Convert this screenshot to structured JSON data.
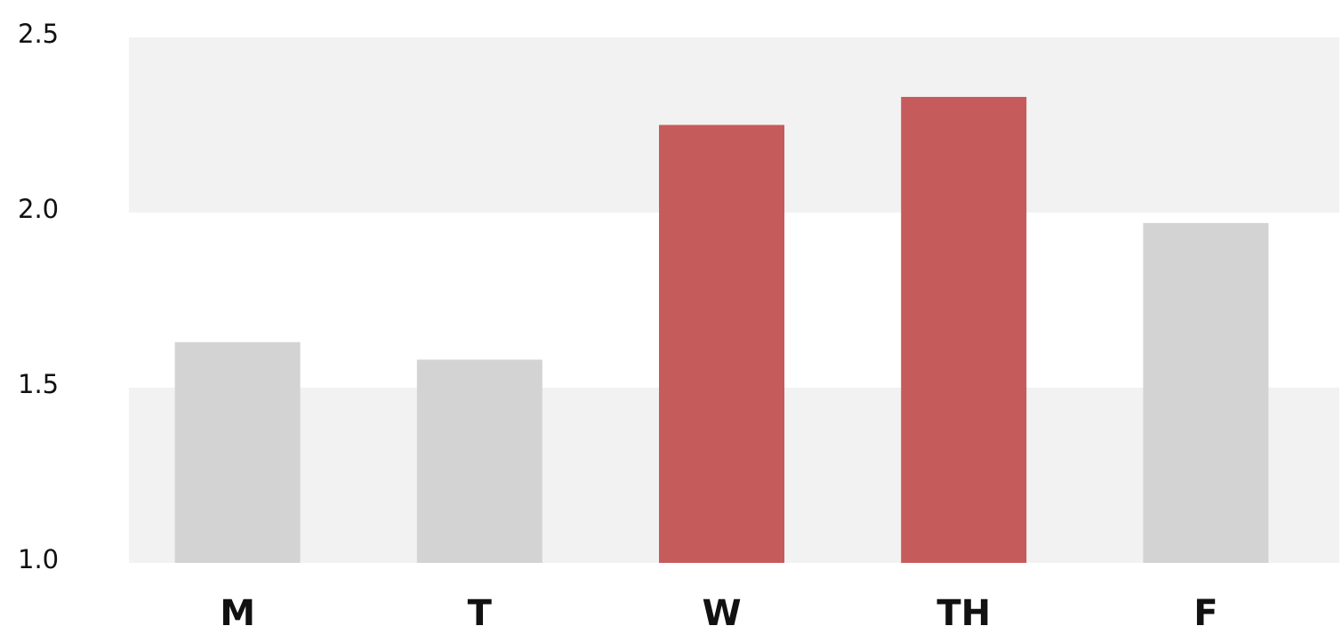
{
  "chart_data": {
    "type": "bar",
    "categories": [
      "M",
      "T",
      "W",
      "TH",
      "F"
    ],
    "values": [
      1.63,
      1.58,
      2.25,
      2.33,
      1.97
    ],
    "highlighted": [
      false,
      false,
      true,
      true,
      false
    ],
    "ylim": [
      1.0,
      2.5
    ],
    "yticks": [
      "1.0",
      "1.5",
      "2.0",
      "2.5"
    ],
    "title": "",
    "xlabel": "",
    "ylabel": "",
    "grid": "alternating horizontal bands",
    "legend": "none",
    "colors": {
      "bar_default": "#d2d3d2",
      "bar_highlight": "#c65b5b",
      "band": "#f2f2f2",
      "background": "#ffffff",
      "text": "#111111"
    }
  }
}
